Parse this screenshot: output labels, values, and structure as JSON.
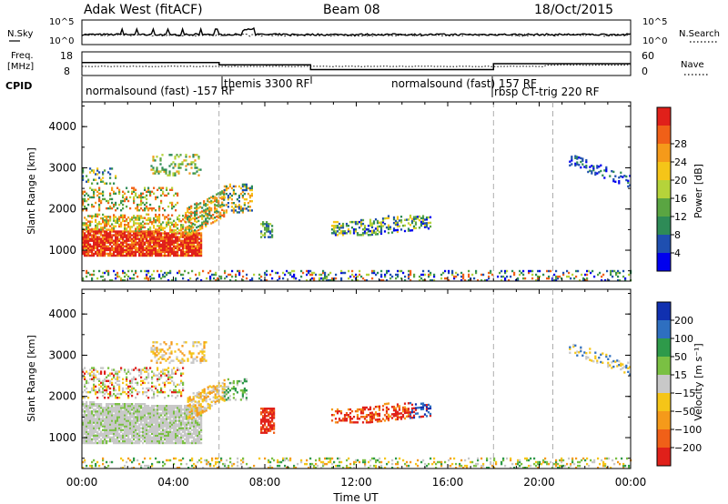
{
  "header": {
    "station": "Adak West (fitACF)",
    "beam": "Beam 08",
    "date": "18/Oct/2015"
  },
  "chart_data": [
    {
      "type": "line",
      "panel": "noise",
      "left_label": "N.Sky",
      "right_label": "N.Search",
      "left_ticks": [
        "10^5",
        "10^0"
      ],
      "right_ticks": [
        "10^5",
        "10^0"
      ]
    },
    {
      "type": "line",
      "panel": "frequency",
      "left_label_line1": "Freq.",
      "left_label_line2": "[MHz]",
      "right_label": "Nave",
      "left_ticks": [
        "18",
        "8"
      ],
      "right_ticks": [
        "60",
        "0"
      ],
      "freq_series": [
        {
          "x": 0.0,
          "y": 13.5
        },
        {
          "x": 6.0,
          "y": 13.5
        },
        {
          "x": 6.0,
          "y": 12.5
        },
        {
          "x": 10.0,
          "y": 12.5
        },
        {
          "x": 10.0,
          "y": 10.5
        },
        {
          "x": 18.0,
          "y": 10.5
        },
        {
          "x": 18.0,
          "y": 13.0
        },
        {
          "x": 24.0,
          "y": 13.0
        }
      ]
    },
    {
      "type": "table",
      "panel": "cpid",
      "label": "CPID",
      "programs": [
        {
          "label": "normalsound (fast) -157 RF",
          "start": 0.0
        },
        {
          "label": "themis 3300 RF",
          "start": 6.0
        },
        {
          "label": "normalsound (fast) 157 RF",
          "start": 10.0
        },
        {
          "label": "rbsp CT-trig 220 RF",
          "start": 18.0
        }
      ]
    },
    {
      "type": "heatmap",
      "panel": "power",
      "ylabel": "Slant Range [km]",
      "yticks": [
        "1000",
        "2000",
        "3000",
        "4000"
      ],
      "ylim": [
        250,
        4600
      ],
      "xlim": [
        0,
        24
      ],
      "colorbar_label": "Power [dB]",
      "colorbar_ticks": [
        "4",
        "8",
        "12",
        "16",
        "20",
        "24",
        "28"
      ],
      "colors": [
        "#0000ee",
        "#1f4fb0",
        "#2e8b57",
        "#5aa542",
        "#b5d33a",
        "#f5c518",
        "#f59a1a",
        "#f06018",
        "#e0201a"
      ]
    },
    {
      "type": "heatmap",
      "panel": "velocity",
      "ylabel": "Slant Range [km]",
      "yticks": [
        "1000",
        "2000",
        "3000",
        "4000"
      ],
      "ylim": [
        250,
        4600
      ],
      "xlim": [
        0,
        24
      ],
      "colorbar_label": "Velocity [m s⁻¹]",
      "colorbar_ticks": [
        "200",
        "100",
        "50",
        "15",
        "−15",
        "−50",
        "−100",
        "−200"
      ],
      "colors": [
        "#1030b0",
        "#2e6fc0",
        "#2e9a4a",
        "#7ac043",
        "#c8c8c8",
        "#f5c518",
        "#f59a1a",
        "#f06018",
        "#e0201a"
      ]
    }
  ],
  "xaxis": {
    "label": "Time UT",
    "ticks": [
      "00:00",
      "04:00",
      "08:00",
      "12:00",
      "16:00",
      "20:00",
      "00:00"
    ]
  }
}
